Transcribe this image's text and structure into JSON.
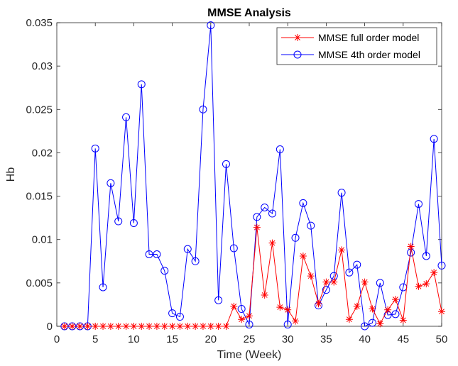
{
  "chart_data": {
    "type": "line",
    "title": "MMSE Analysis",
    "xlabel": "Time (Week)",
    "ylabel": "Hb",
    "xlim": [
      0,
      50
    ],
    "ylim": [
      0,
      0.035
    ],
    "x_ticks": [
      0,
      5,
      10,
      15,
      20,
      25,
      30,
      35,
      40,
      45,
      50
    ],
    "x_tick_labels": [
      "0",
      "5",
      "10",
      "15",
      "20",
      "25",
      "30",
      "35",
      "40",
      "45",
      "50"
    ],
    "y_ticks": [
      0,
      0.005,
      0.01,
      0.015,
      0.02,
      0.025,
      0.03,
      0.035
    ],
    "y_tick_labels": [
      "0",
      "0.005",
      "0.01",
      "0.015",
      "0.02",
      "0.025",
      "0.03",
      "0.035"
    ],
    "grid": false,
    "legend_position": "top-right",
    "x": [
      1,
      2,
      3,
      4,
      5,
      6,
      7,
      8,
      9,
      10,
      11,
      12,
      13,
      14,
      15,
      16,
      17,
      18,
      19,
      20,
      21,
      22,
      23,
      24,
      25,
      26,
      27,
      28,
      29,
      30,
      31,
      32,
      33,
      34,
      35,
      36,
      37,
      38,
      39,
      40,
      41,
      42,
      43,
      44,
      45,
      46,
      47,
      48,
      49,
      50
    ],
    "series": [
      {
        "name": "MMSE full order model",
        "color": "#ff0000",
        "marker": "asterisk",
        "values": [
          0,
          0,
          0,
          0,
          0,
          0,
          0,
          0,
          0,
          0,
          0,
          0,
          0,
          0,
          0,
          0,
          0,
          0,
          0,
          0,
          0,
          0,
          0.0023,
          0.0008,
          0.0012,
          0.0114,
          0.0036,
          0.0096,
          0.0022,
          0.0019,
          0.0006,
          0.0081,
          0.0058,
          0.0026,
          0.0051,
          0.0051,
          0.0088,
          0.0008,
          0.0023,
          0.0051,
          0.002,
          0.0003,
          0.0019,
          0.0031,
          0.0007,
          0.0092,
          0.0046,
          0.0049,
          0.0062,
          0.0017
        ]
      },
      {
        "name": "MMSE 4th order model",
        "color": "#0000ff",
        "marker": "circle",
        "values": [
          0,
          0,
          0,
          0,
          0.0205,
          0.0045,
          0.0165,
          0.0121,
          0.0241,
          0.0119,
          0.0279,
          0.0083,
          0.0083,
          0.0064,
          0.0015,
          0.0011,
          0.0089,
          0.0075,
          0.025,
          0.0347,
          0.003,
          0.0187,
          0.009,
          0.002,
          0.0002,
          0.0126,
          0.0137,
          0.013,
          0.0204,
          0.0002,
          0.0102,
          0.0142,
          0.0116,
          0.0024,
          0.0042,
          0.0058,
          0.0154,
          0.0062,
          0.0071,
          0,
          0.0004,
          0.005,
          0.0013,
          0.0014,
          0.0045,
          0.0085,
          0.0141,
          0.0081,
          0.0216,
          0.007
        ]
      }
    ]
  }
}
